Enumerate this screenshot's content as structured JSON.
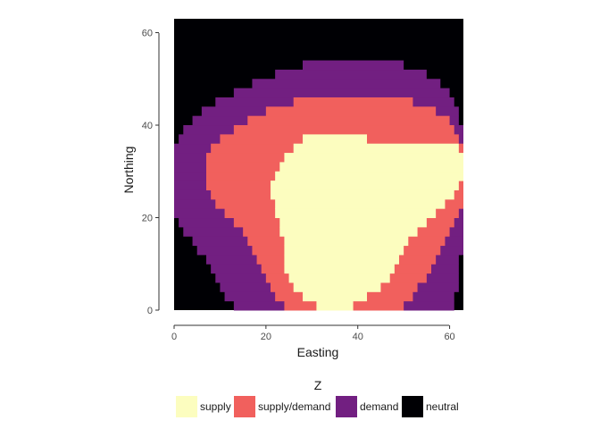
{
  "chart_data": {
    "type": "heatmap",
    "xlabel": "Easting",
    "ylabel": "Northing",
    "xlim": [
      0,
      63
    ],
    "ylim": [
      0,
      63
    ],
    "x_ticks": [
      "0",
      "20",
      "40",
      "60"
    ],
    "y_ticks": [
      "0",
      "20",
      "40",
      "60"
    ],
    "grid": false,
    "legend": {
      "title": "Z",
      "position": "bottom",
      "categories": [
        {
          "label": "supply",
          "color": "#FCFDBF"
        },
        {
          "label": "supply/demand",
          "color": "#F1605D"
        },
        {
          "label": "demand",
          "color": "#721F81"
        },
        {
          "label": "neutral",
          "color": "#000004"
        }
      ]
    },
    "regions_by_row": {
      "row_step": 2,
      "rows": [
        {
          "y": 0,
          "demand": [
            13,
            61
          ],
          "supply_demand": [
            24,
            50
          ],
          "supply": [
            31,
            39
          ]
        },
        {
          "y": 2,
          "demand": [
            11,
            61
          ],
          "supply_demand": [
            22,
            52
          ],
          "supply": [
            28,
            42
          ]
        },
        {
          "y": 4,
          "demand": [
            10,
            62
          ],
          "supply_demand": [
            21,
            53
          ],
          "supply": [
            26,
            45
          ]
        },
        {
          "y": 6,
          "demand": [
            9,
            62
          ],
          "supply_demand": [
            20,
            55
          ],
          "supply": [
            25,
            47
          ]
        },
        {
          "y": 8,
          "demand": [
            8,
            62
          ],
          "supply_demand": [
            19,
            56
          ],
          "supply": [
            24,
            48
          ]
        },
        {
          "y": 10,
          "demand": [
            7,
            62
          ],
          "supply_demand": [
            18,
            57
          ],
          "supply": [
            24,
            49
          ]
        },
        {
          "y": 12,
          "demand": [
            5,
            63
          ],
          "supply_demand": [
            17,
            58
          ],
          "supply": [
            24,
            50
          ]
        },
        {
          "y": 14,
          "demand": [
            4,
            63
          ],
          "supply_demand": [
            16,
            59
          ],
          "supply": [
            24,
            51
          ]
        },
        {
          "y": 16,
          "demand": [
            2,
            63
          ],
          "supply_demand": [
            15,
            60
          ],
          "supply": [
            23,
            53
          ]
        },
        {
          "y": 18,
          "demand": [
            1,
            63
          ],
          "supply_demand": [
            13,
            61
          ],
          "supply": [
            23,
            55
          ]
        },
        {
          "y": 20,
          "demand": [
            0,
            63
          ],
          "supply_demand": [
            11,
            62
          ],
          "supply": [
            22,
            57
          ]
        },
        {
          "y": 22,
          "demand": [
            0,
            63
          ],
          "supply_demand": [
            9,
            63
          ],
          "supply": [
            22,
            59
          ]
        },
        {
          "y": 24,
          "demand": [
            0,
            63
          ],
          "supply_demand": [
            8,
            63
          ],
          "supply": [
            21,
            61
          ]
        },
        {
          "y": 26,
          "demand": [
            0,
            63
          ],
          "supply_demand": [
            7,
            63
          ],
          "supply": [
            21,
            62
          ]
        },
        {
          "y": 28,
          "demand": [
            0,
            63
          ],
          "supply_demand": [
            7,
            63
          ],
          "supply": [
            22,
            63
          ]
        },
        {
          "y": 30,
          "demand": [
            0,
            63
          ],
          "supply_demand": [
            7,
            63
          ],
          "supply": [
            23,
            63
          ]
        },
        {
          "y": 32,
          "demand": [
            0,
            63
          ],
          "supply_demand": [
            7,
            63
          ],
          "supply": [
            24,
            63
          ]
        },
        {
          "y": 34,
          "demand": [
            0,
            63
          ],
          "supply_demand": [
            8,
            63
          ],
          "supply": [
            26,
            62
          ]
        },
        {
          "y": 36,
          "demand": [
            1,
            63
          ],
          "supply_demand": [
            10,
            62
          ],
          "supply": [
            28,
            42
          ]
        },
        {
          "y": 38,
          "demand": [
            2,
            63
          ],
          "supply_demand": [
            13,
            61
          ],
          "supply": []
        },
        {
          "y": 40,
          "demand": [
            4,
            62
          ],
          "supply_demand": [
            16,
            60
          ],
          "supply": []
        },
        {
          "y": 42,
          "demand": [
            6,
            62
          ],
          "supply_demand": [
            20,
            57
          ],
          "supply": []
        },
        {
          "y": 44,
          "demand": [
            9,
            61
          ],
          "supply_demand": [
            26,
            52
          ],
          "supply": []
        },
        {
          "y": 46,
          "demand": [
            13,
            60
          ],
          "supply_demand": [],
          "supply": []
        },
        {
          "y": 48,
          "demand": [
            17,
            58
          ],
          "supply_demand": [],
          "supply": []
        },
        {
          "y": 50,
          "demand": [
            22,
            55
          ],
          "supply_demand": [],
          "supply": []
        },
        {
          "y": 52,
          "demand": [
            28,
            50
          ],
          "supply_demand": [],
          "supply": []
        }
      ]
    }
  }
}
